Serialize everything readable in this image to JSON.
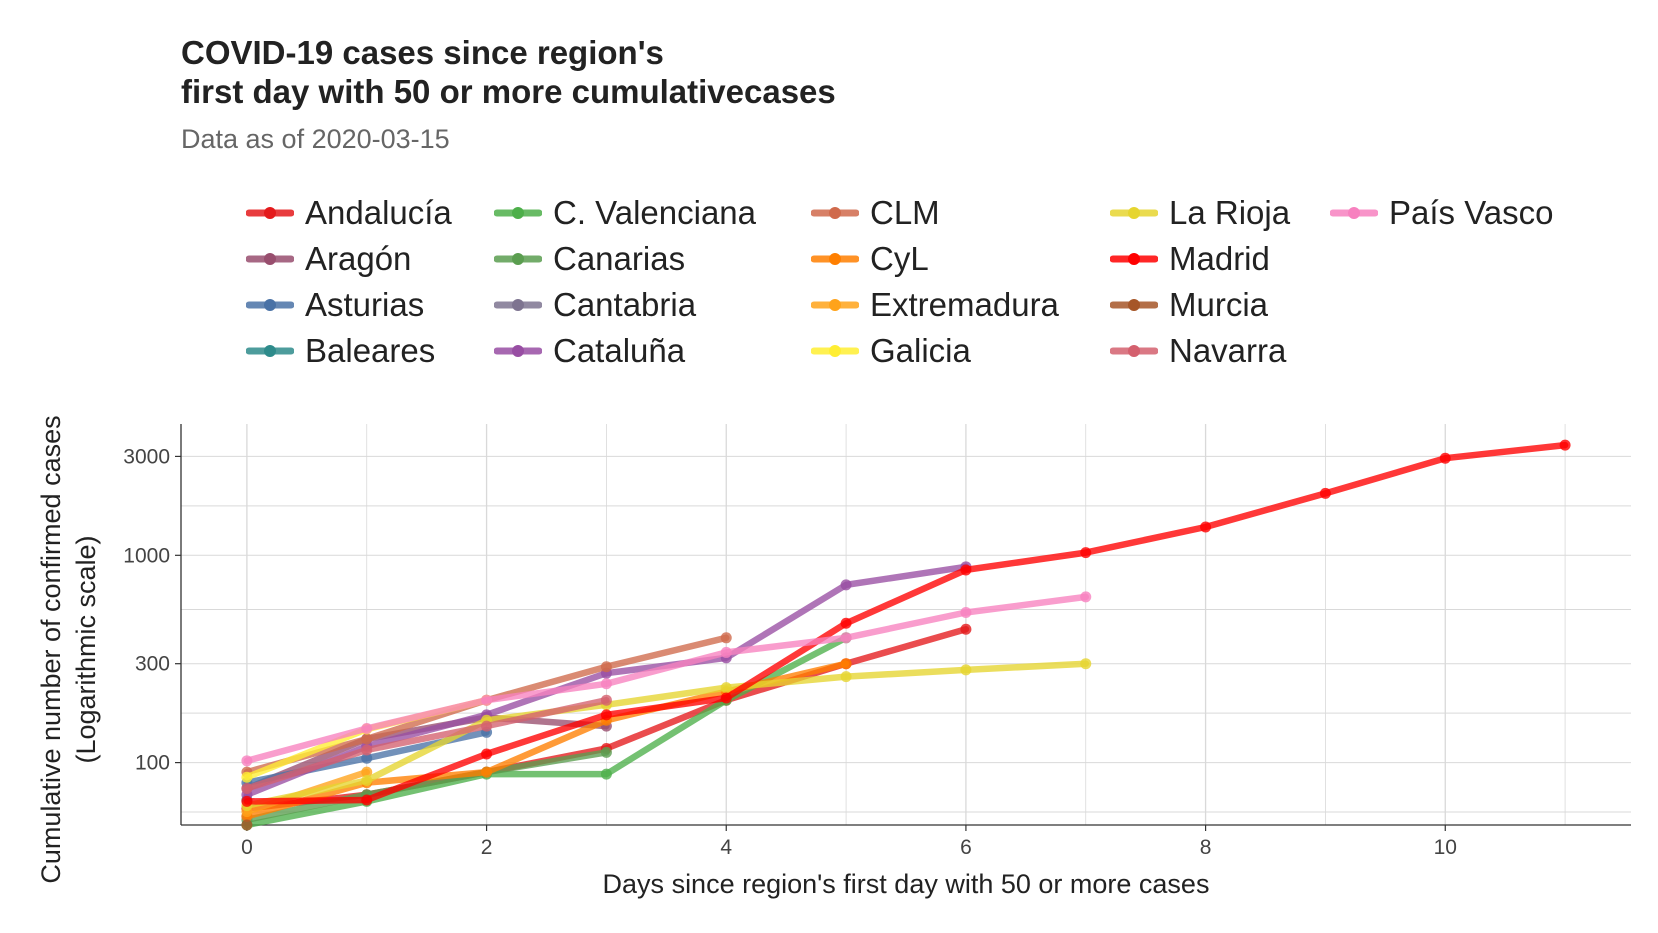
{
  "chart_data": {
    "type": "line",
    "title": "COVID-19 cases since region's",
    "title_line2": "first day with 50 or more cumulativecases",
    "subtitle": "Data as of 2020-03-15",
    "xlabel": "Days since region's first day with 50 or more cases",
    "ylabel": "Cumulative number of confirmed cases",
    "ylabel_line2": "(Logarithmic scale)",
    "x_ticks": [
      0,
      2,
      4,
      6,
      8,
      10
    ],
    "y_ticks": [
      100,
      300,
      1000,
      3000
    ],
    "y_scale": "log",
    "xlim": [
      -0.55,
      11.55
    ],
    "ylim": [
      50,
      4300
    ],
    "grid": true,
    "legend_position": "top",
    "series": [
      {
        "name": "Andalucía",
        "color": "#e41a1c",
        "x": [
          0,
          1,
          2,
          3,
          4,
          5,
          6
        ],
        "y": [
          60,
          70,
          90,
          117,
          200,
          300,
          440
        ]
      },
      {
        "name": "Aragón",
        "color": "#984e6e",
        "x": [
          0,
          1,
          2,
          3
        ],
        "y": [
          75,
          130,
          165,
          150
        ]
      },
      {
        "name": "Asturias",
        "color": "#4a72a6",
        "x": [
          0,
          1,
          2
        ],
        "y": [
          80,
          105,
          140
        ]
      },
      {
        "name": "Baleares",
        "color": "#2e8b8b",
        "x": [
          0
        ],
        "y": [
          66
        ]
      },
      {
        "name": "C. Valenciana",
        "color": "#4daf4a",
        "x": [
          0,
          1,
          2,
          3,
          4,
          5
        ],
        "y": [
          50,
          65,
          88,
          88,
          200,
          400
        ]
      },
      {
        "name": "Canarias",
        "color": "#5b9e50",
        "x": [
          0,
          1,
          2,
          3
        ],
        "y": [
          53,
          70,
          90,
          112
        ]
      },
      {
        "name": "Cantabria",
        "color": "#7e7490",
        "x": [
          0
        ],
        "y": [
          55
        ]
      },
      {
        "name": "Cataluña",
        "color": "#984ea3",
        "x": [
          0,
          1,
          2,
          3,
          4,
          5,
          6
        ],
        "y": [
          70,
          120,
          170,
          270,
          320,
          720,
          880
        ]
      },
      {
        "name": "CLM",
        "color": "#d06a4c",
        "x": [
          0,
          1,
          2,
          3,
          4
        ],
        "y": [
          90,
          130,
          200,
          290,
          400
        ]
      },
      {
        "name": "CyL",
        "color": "#ff7f00",
        "x": [
          0,
          1,
          2,
          3,
          4,
          5
        ],
        "y": [
          55,
          80,
          90,
          160,
          220,
          300
        ]
      },
      {
        "name": "Extremadura",
        "color": "#ffa31a",
        "x": [
          0,
          1
        ],
        "y": [
          58,
          90
        ]
      },
      {
        "name": "Galicia",
        "color": "#ffee33",
        "x": [
          0,
          1,
          2
        ],
        "y": [
          85,
          145,
          200
        ]
      },
      {
        "name": "La Rioja",
        "color": "#e6d530",
        "x": [
          0,
          1,
          2,
          3,
          4,
          5,
          6,
          7
        ],
        "y": [
          62,
          82,
          160,
          190,
          230,
          260,
          280,
          300
        ]
      },
      {
        "name": "Madrid",
        "color": "#ff0000",
        "x": [
          0,
          1,
          2,
          3,
          4,
          5,
          6,
          7,
          8,
          9,
          10,
          11
        ],
        "y": [
          65,
          66,
          110,
          170,
          205,
          470,
          850,
          1030,
          1370,
          1990,
          2940,
          3400
        ]
      },
      {
        "name": "Murcia",
        "color": "#a65628",
        "x": [
          0
        ],
        "y": [
          50
        ]
      },
      {
        "name": "Navarra",
        "color": "#d4606e",
        "x": [
          0,
          1,
          2,
          3
        ],
        "y": [
          75,
          115,
          150,
          200
        ]
      },
      {
        "name": "País Vasco",
        "color": "#f781bf",
        "x": [
          0,
          1,
          2,
          3,
          4,
          5,
          6,
          7
        ],
        "y": [
          102,
          146,
          200,
          240,
          340,
          400,
          530,
          630
        ]
      }
    ]
  }
}
